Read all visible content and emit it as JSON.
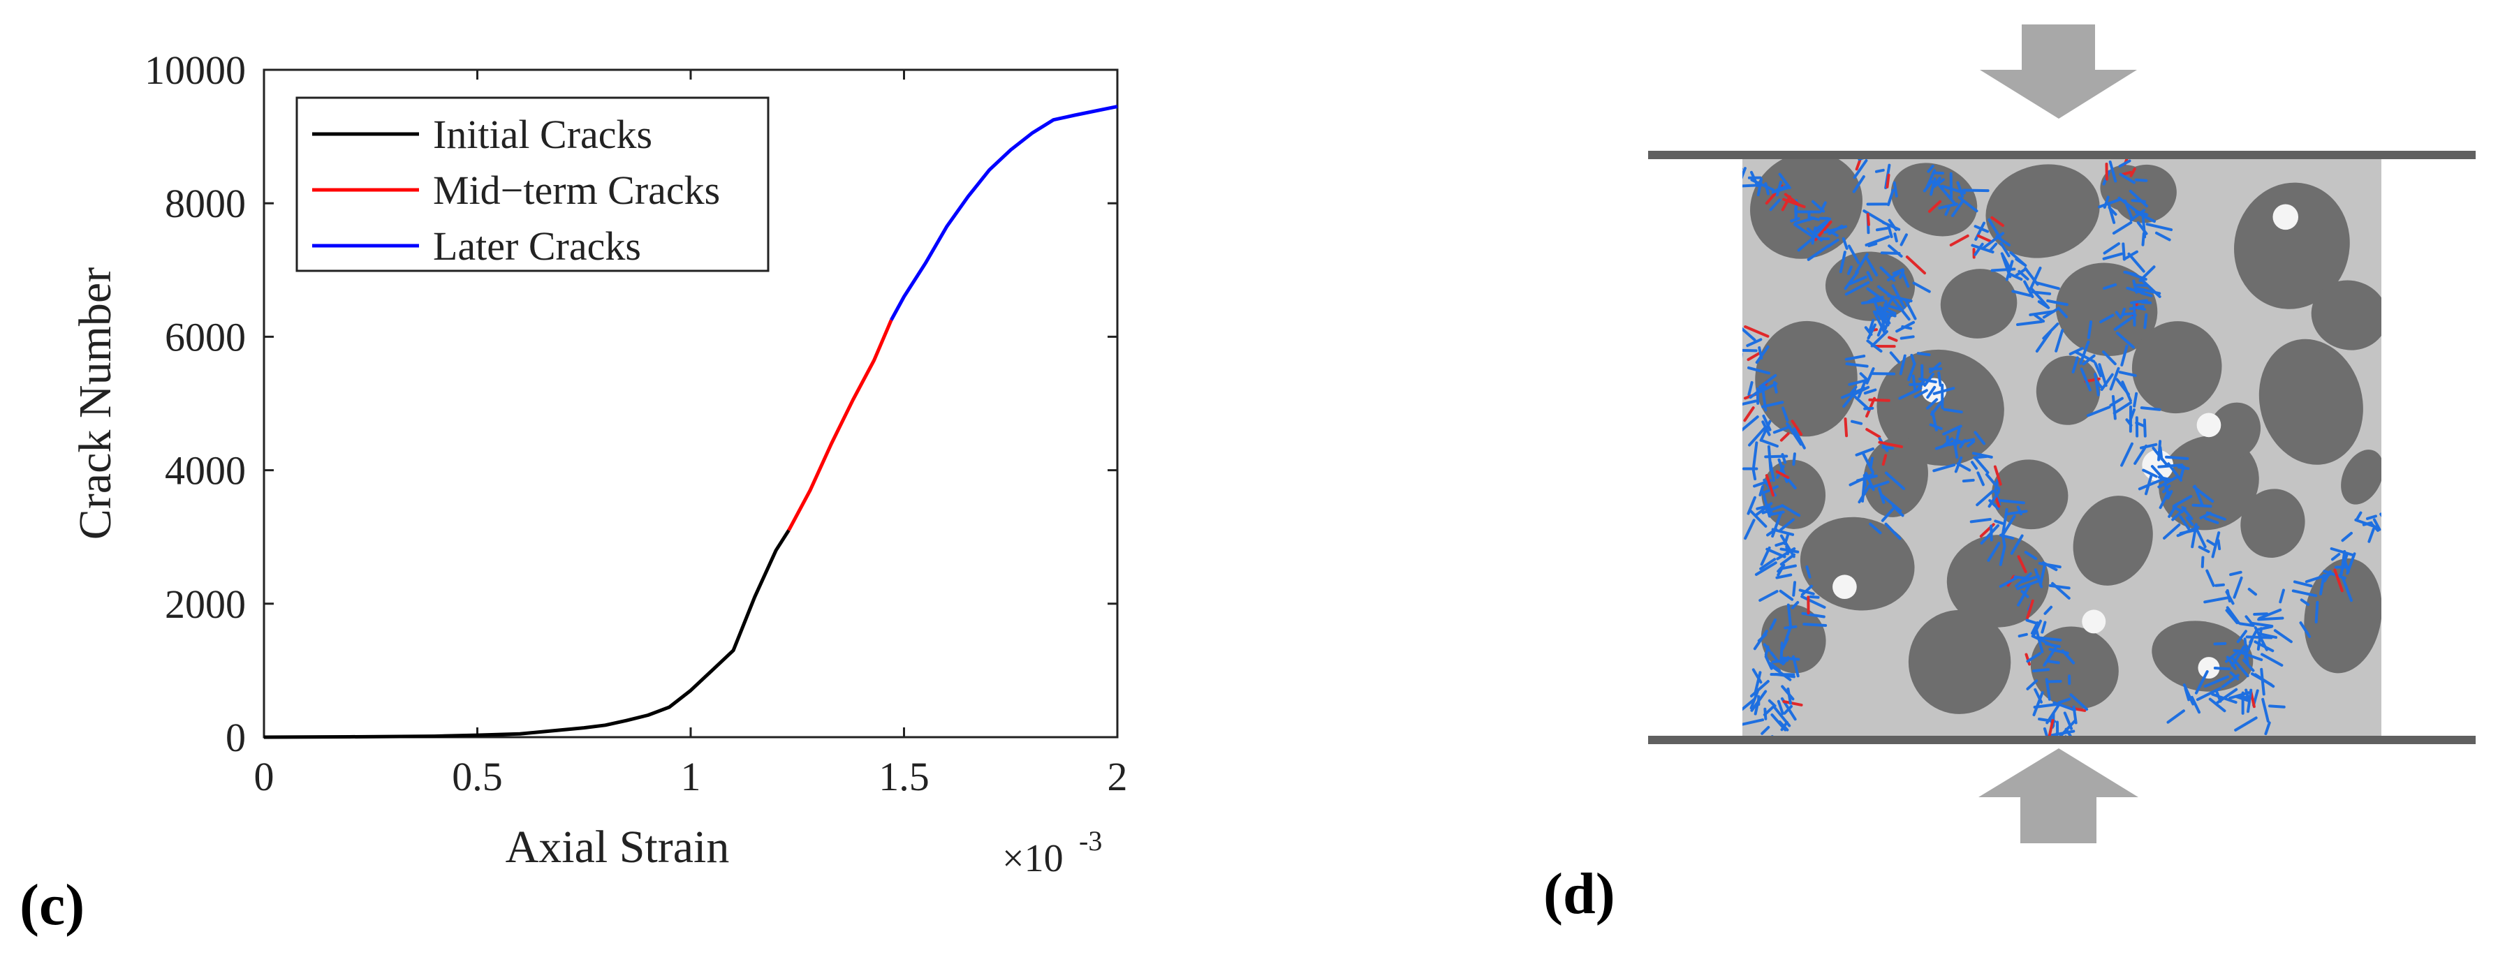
{
  "panels": {
    "c_label": "(c)",
    "d_label": "(d)"
  },
  "chart_data": {
    "type": "line",
    "title": "",
    "xlabel": "Axial Strain",
    "ylabel": "Crack Number",
    "x_multiplier": "×10",
    "x_multiplier_exp": "-3",
    "xlim": [
      0,
      2
    ],
    "ylim": [
      0,
      10000
    ],
    "xticks": [
      0,
      0.5,
      1,
      1.5,
      2
    ],
    "xtick_labels": [
      "0",
      "0.5",
      "1",
      "1.5",
      "2"
    ],
    "yticks": [
      0,
      2000,
      4000,
      6000,
      8000,
      10000
    ],
    "ytick_labels": [
      "0",
      "2000",
      "4000",
      "6000",
      "8000",
      "10000"
    ],
    "grid": false,
    "legend_position": "top-left",
    "series": [
      {
        "name": "Initial Cracks",
        "color": "#000000",
        "x": [
          0,
          0.2,
          0.4,
          0.5,
          0.6,
          0.65,
          0.7,
          0.75,
          0.8,
          0.85,
          0.9,
          0.95,
          1.0,
          1.05,
          1.1,
          1.15,
          1.2,
          1.23
        ],
        "y": [
          0,
          5,
          15,
          30,
          50,
          80,
          110,
          140,
          180,
          250,
          330,
          450,
          700,
          1000,
          1300,
          2100,
          2800,
          3100
        ]
      },
      {
        "name": "Mid−term Cracks",
        "color": "#ff0000",
        "x": [
          1.23,
          1.28,
          1.33,
          1.38,
          1.43,
          1.47
        ],
        "y": [
          3100,
          3700,
          4400,
          5050,
          5650,
          6250
        ]
      },
      {
        "name": "Later Cracks",
        "color": "#0000ff",
        "x": [
          1.47,
          1.5,
          1.55,
          1.6,
          1.65,
          1.7,
          1.75,
          1.8,
          1.85,
          1.9,
          2.0
        ],
        "y": [
          6250,
          6600,
          7100,
          7650,
          8100,
          8500,
          8800,
          9050,
          9250,
          9320,
          9450
        ]
      }
    ]
  },
  "diagram": {
    "arrow_color": "#a8a8a8",
    "plate_color": "#606060",
    "matrix_color": "#c4c4c4",
    "aggregate_color": "#6e6e6e",
    "crack_later_color": "#1e6fe0",
    "crack_mid_color": "#e0282a"
  }
}
